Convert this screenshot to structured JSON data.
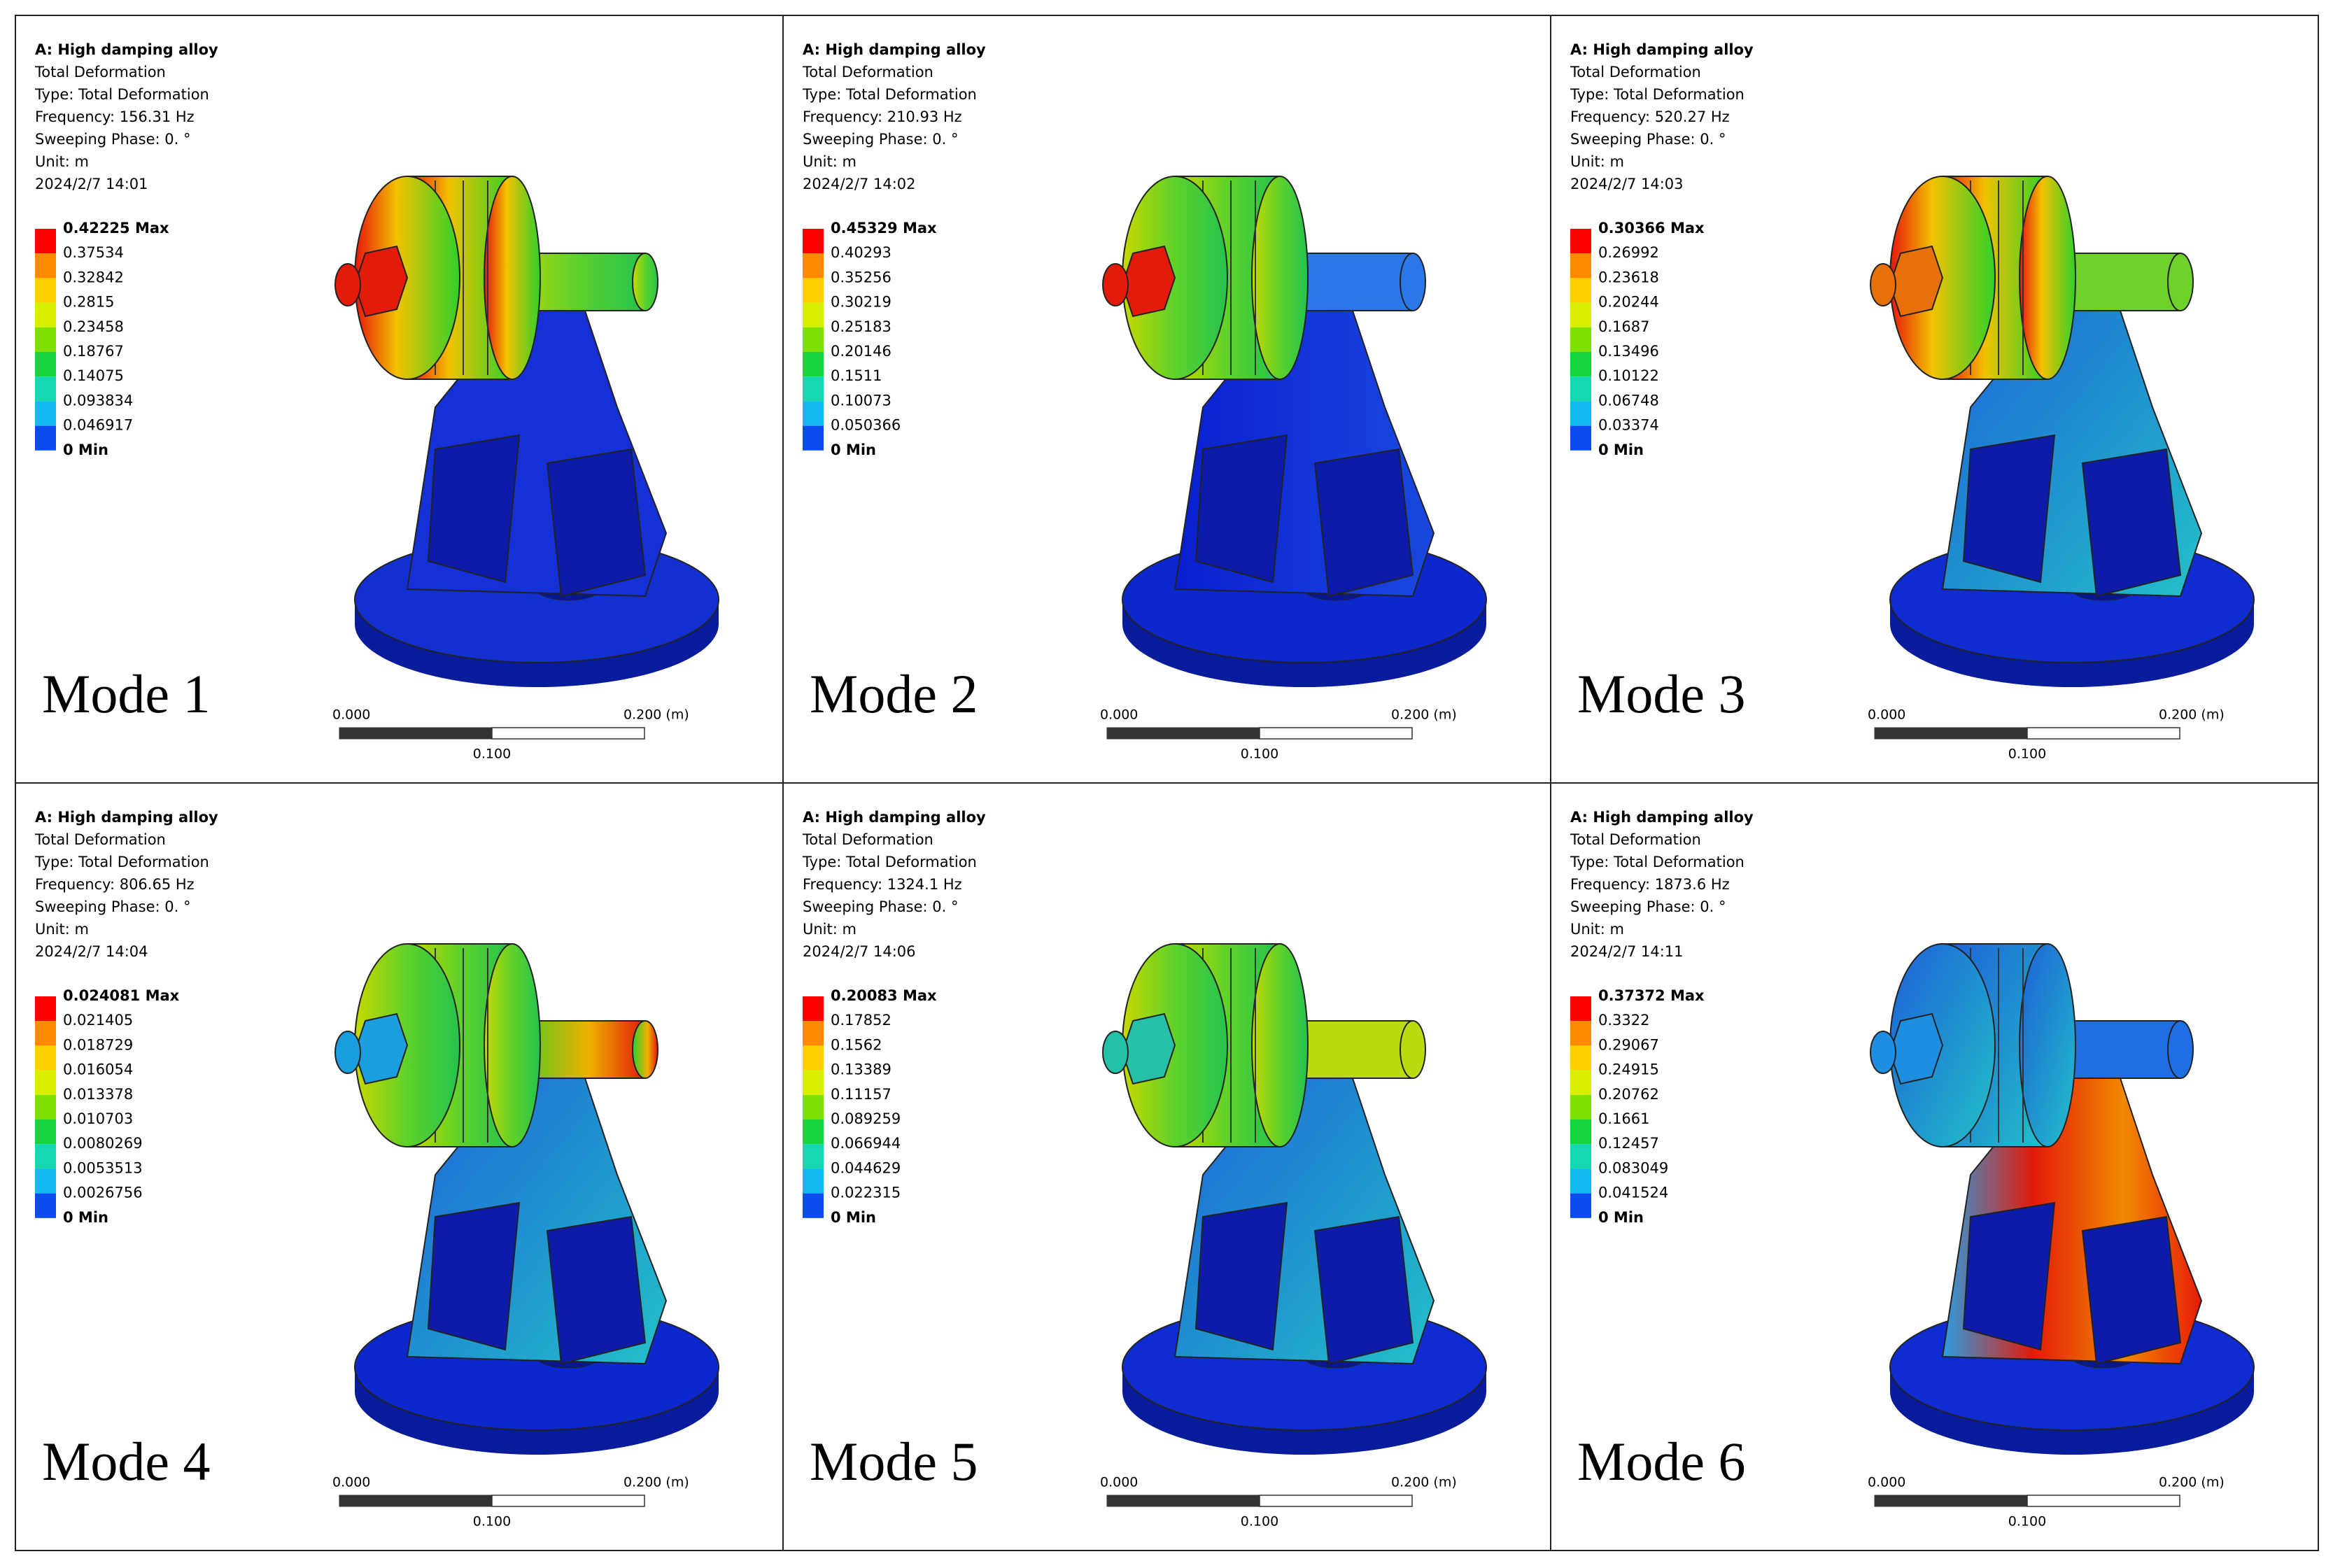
{
  "panels": [
    {
      "header": [
        "A: High damping alloy",
        "Total Deformation",
        "Type: Total Deformation",
        "Frequency: 156.31 Hz",
        "Sweeping Phase: 0. °",
        "Unit: m",
        "2024/2/7 14:01"
      ],
      "legend": [
        "0.42225 Max",
        "0.37534",
        "0.32842",
        "0.2815",
        "0.23458",
        "0.18767",
        "0.14075",
        "0.093834",
        "0.046917",
        "0 Min"
      ],
      "mode": "Mode 1",
      "scale": [
        "0.000",
        "0.200 (m)",
        "0.100"
      ]
    },
    {
      "header": [
        "A: High damping alloy",
        "Total Deformation",
        "Type: Total Deformation",
        "Frequency: 210.93 Hz",
        "Sweeping Phase: 0. °",
        "Unit: m",
        "2024/2/7 14:02"
      ],
      "legend": [
        "0.45329 Max",
        "0.40293",
        "0.35256",
        "0.30219",
        "0.25183",
        "0.20146",
        "0.1511",
        "0.10073",
        "0.050366",
        "0 Min"
      ],
      "mode": "Mode 2",
      "scale": [
        "0.000",
        "0.200 (m)",
        "0.100"
      ]
    },
    {
      "header": [
        "A: High damping alloy",
        "Total Deformation",
        "Type: Total Deformation",
        "Frequency: 520.27 Hz",
        "Sweeping Phase: 0. °",
        "Unit: m",
        "2024/2/7 14:03"
      ],
      "legend": [
        "0.30366 Max",
        "0.26992",
        "0.23618",
        "0.20244",
        "0.1687",
        "0.13496",
        "0.10122",
        "0.06748",
        "0.03374",
        "0 Min"
      ],
      "mode": "Mode 3",
      "scale": [
        "0.000",
        "0.200 (m)",
        "0.100"
      ]
    },
    {
      "header": [
        "A: High damping alloy",
        "Total Deformation",
        "Type: Total Deformation",
        "Frequency: 806.65 Hz",
        "Sweeping Phase: 0. °",
        "Unit: m",
        "2024/2/7 14:04"
      ],
      "legend": [
        "0.024081 Max",
        "0.021405",
        "0.018729",
        "0.016054",
        "0.013378",
        "0.010703",
        "0.0080269",
        "0.0053513",
        "0.0026756",
        "0 Min"
      ],
      "mode": "Mode 4",
      "scale": [
        "0.000",
        "0.200 (m)",
        "0.100"
      ]
    },
    {
      "header": [
        "A: High damping alloy",
        "Total Deformation",
        "Type: Total Deformation",
        "Frequency: 1324.1 Hz",
        "Sweeping Phase: 0. °",
        "Unit: m",
        "2024/2/7 14:06"
      ],
      "legend": [
        "0.20083 Max",
        "0.17852",
        "0.1562",
        "0.13389",
        "0.11157",
        "0.089259",
        "0.066944",
        "0.044629",
        "0.022315",
        "0 Min"
      ],
      "mode": "Mode 5",
      "scale": [
        "0.000",
        "0.200 (m)",
        "0.100"
      ]
    },
    {
      "header": [
        "A: High damping alloy",
        "Total Deformation",
        "Type: Total Deformation",
        "Frequency: 1873.6 Hz",
        "Sweeping Phase: 0. °",
        "Unit: m",
        "2024/2/7 14:11"
      ],
      "legend": [
        "0.37372 Max",
        "0.3322",
        "0.29067",
        "0.24915",
        "0.20762",
        "0.1661",
        "0.12457",
        "0.083049",
        "0.041524",
        "0 Min"
      ],
      "mode": "Mode 6",
      "scale": [
        "0.000",
        "0.200 (m)",
        "0.100"
      ]
    }
  ]
}
